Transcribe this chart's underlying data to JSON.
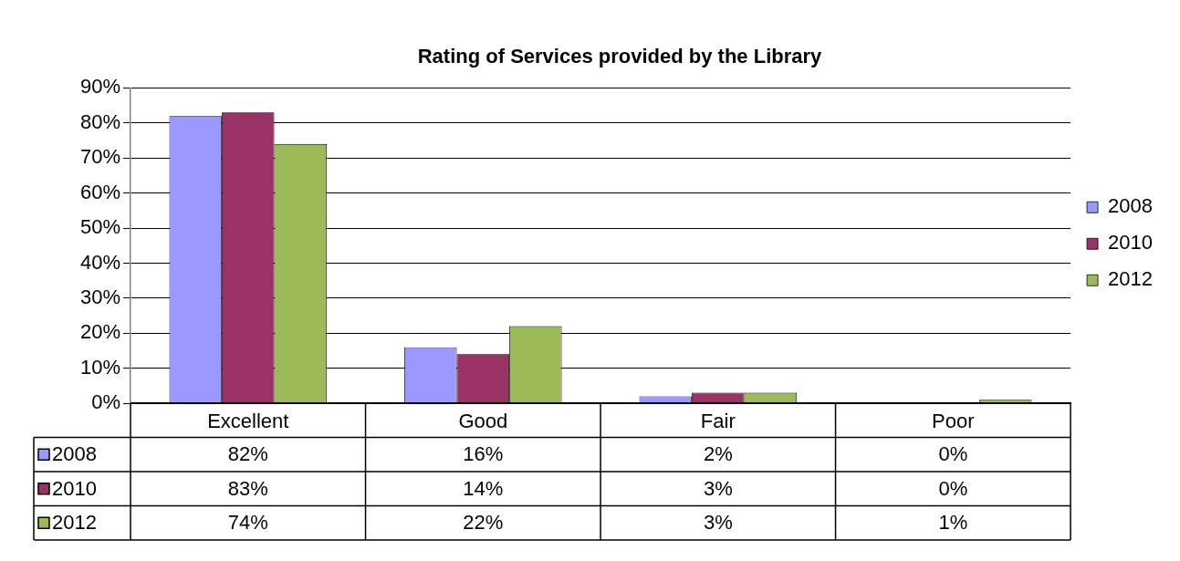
{
  "chart_data": {
    "type": "bar",
    "title": "Rating of Services provided by the Library",
    "categories": [
      "Excellent",
      "Good",
      "Fair",
      "Poor"
    ],
    "series": [
      {
        "name": "2008",
        "color": "#9999ff",
        "values": [
          82,
          16,
          2,
          0
        ],
        "value_labels": [
          "82%",
          "16%",
          "2%",
          "0%"
        ]
      },
      {
        "name": "2010",
        "color": "#993366",
        "values": [
          83,
          14,
          3,
          0
        ],
        "value_labels": [
          "83%",
          "14%",
          "3%",
          "0%"
        ]
      },
      {
        "name": "2012",
        "color": "#9bbb59",
        "values": [
          74,
          22,
          3,
          1
        ],
        "value_labels": [
          "74%",
          "22%",
          "3%",
          "1%"
        ]
      }
    ],
    "ylim": [
      0,
      90
    ],
    "yticks": [
      {
        "value": 0,
        "label": "0%"
      },
      {
        "value": 10,
        "label": "10%"
      },
      {
        "value": 20,
        "label": "20%"
      },
      {
        "value": 30,
        "label": "30%"
      },
      {
        "value": 40,
        "label": "40%"
      },
      {
        "value": 50,
        "label": "50%"
      },
      {
        "value": 60,
        "label": "60%"
      },
      {
        "value": 70,
        "label": "70%"
      },
      {
        "value": 80,
        "label": "80%"
      },
      {
        "value": 90,
        "label": "90%"
      }
    ],
    "grid": "y",
    "legend": "right"
  }
}
